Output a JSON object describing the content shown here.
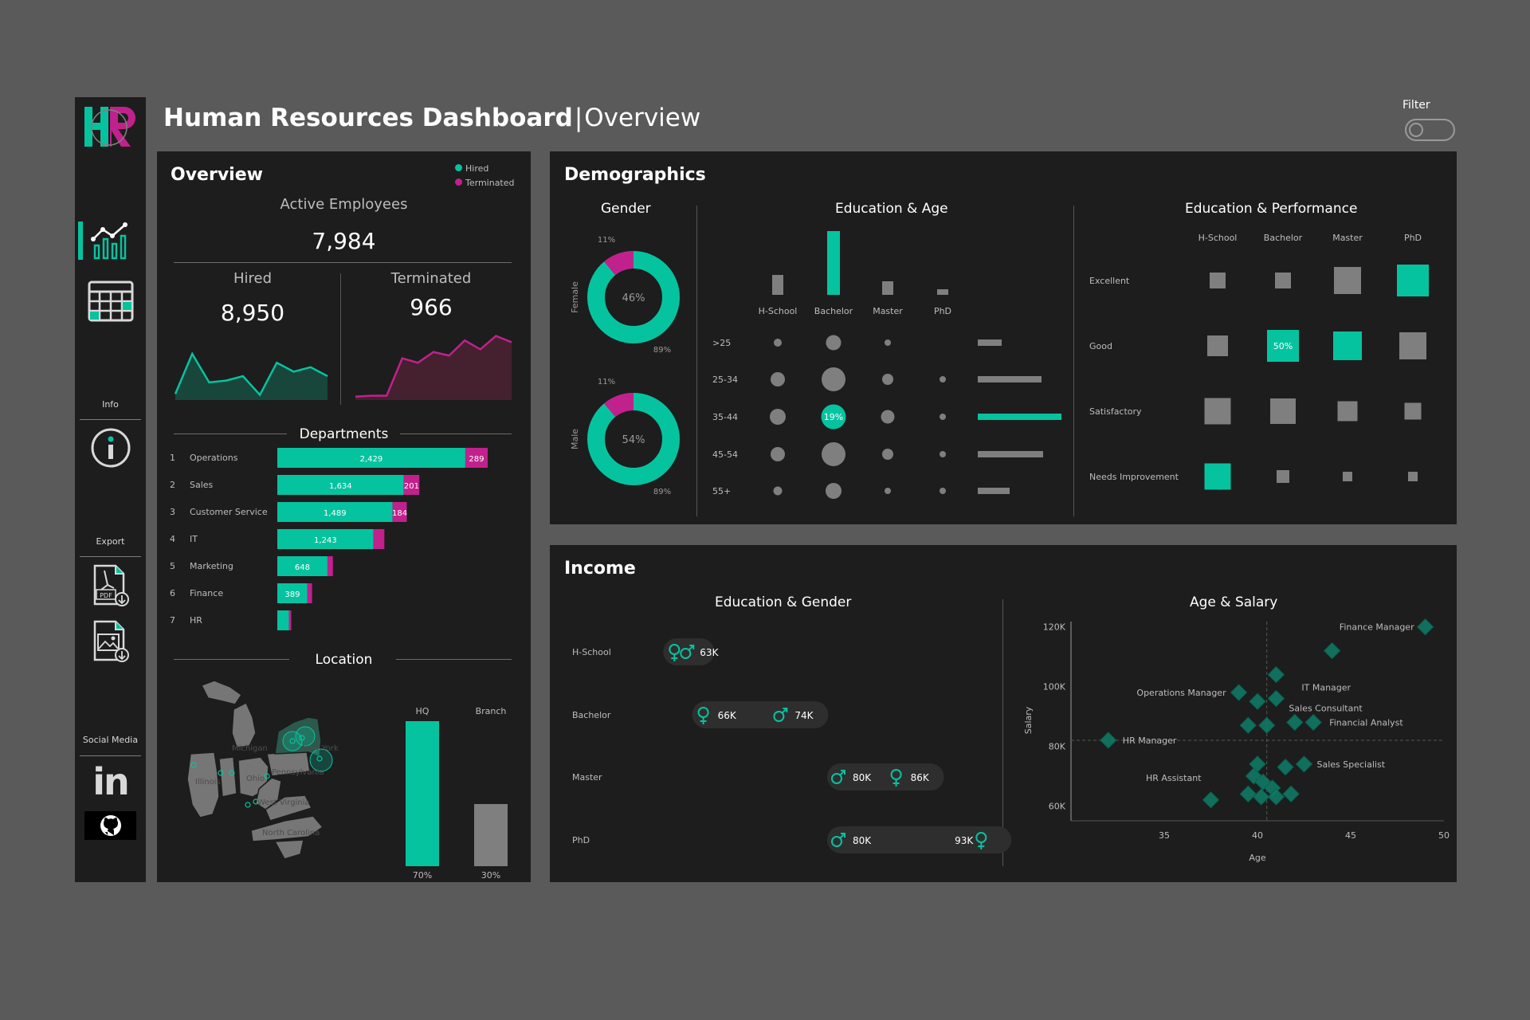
{
  "header": {
    "title": "Human Resources Dashboard",
    "separator": "|",
    "subtitle": "Overview",
    "filter_label": "Filter"
  },
  "sidebar": {
    "logo": "HR",
    "info_label": "Info",
    "export_label": "Export",
    "social_label": "Social Media",
    "linkedin_label": "in",
    "pdf_label": "PDF"
  },
  "overview": {
    "title": "Overview",
    "legend": {
      "hired": "Hired",
      "terminated": "Terminated"
    },
    "active_label": "Active Employees",
    "active_value": "7,984",
    "hired_label": "Hired",
    "hired_value": "8,950",
    "terminated_label": "Terminated",
    "terminated_value": "966",
    "departments_title": "Departments",
    "location_title": "Location"
  },
  "demographics": {
    "title": "Demographics",
    "gender_title": "Gender",
    "edu_age_title": "Education & Age",
    "edu_perf_title": "Education & Performance"
  },
  "income": {
    "title": "Income",
    "edu_gender_title": "Education & Gender",
    "age_salary_title": "Age & Salary"
  },
  "colors": {
    "accent": "#06c3a0",
    "magenta": "#c1218c",
    "gray": "#7f7f7f",
    "panel": "#1d1d1d",
    "page": "#5a5a5a"
  },
  "chart_data": [
    {
      "type": "area",
      "name": "hired-sparkline",
      "series": [
        {
          "name": "Hired",
          "values": [
            5,
            50,
            18,
            20,
            25,
            4,
            40,
            30,
            35,
            25
          ]
        }
      ]
    },
    {
      "type": "area",
      "name": "terminated-sparkline",
      "series": [
        {
          "name": "Terminated",
          "values": [
            2,
            3,
            3,
            45,
            40,
            52,
            48,
            65,
            55,
            70,
            63
          ]
        }
      ]
    },
    {
      "type": "bar",
      "name": "departments",
      "categories": [
        "Operations",
        "Sales",
        "Customer Service",
        "IT",
        "Marketing",
        "Finance",
        "HR"
      ],
      "ranks": [
        "1",
        "2",
        "3",
        "4",
        "5",
        "6",
        "7"
      ],
      "series": [
        {
          "name": "Hired",
          "values": [
            2429,
            1634,
            1489,
            1243,
            648,
            389,
            150
          ],
          "labels": [
            "2,429",
            "1,634",
            "1,489",
            "1,243",
            "648",
            "389",
            ""
          ]
        },
        {
          "name": "Terminated",
          "values": [
            289,
            201,
            184,
            140,
            70,
            60,
            30
          ],
          "labels": [
            "289",
            "201",
            "184",
            "",
            "",
            "",
            ""
          ]
        }
      ]
    },
    {
      "type": "bar",
      "name": "location",
      "categories": [
        "HQ",
        "Branch"
      ],
      "values": [
        70,
        30
      ],
      "value_labels": [
        "70%",
        "30%"
      ],
      "map_labels": [
        "Michigan",
        "New York",
        "Illinois",
        "Ohio",
        "Pennsylvania",
        "West Virginia",
        "North Carolina"
      ]
    },
    {
      "type": "pie",
      "name": "gender",
      "categories": [
        "Female",
        "Male"
      ],
      "values": [
        46,
        54
      ],
      "value_labels": [
        "46%",
        "54%"
      ],
      "terminated_labels": [
        "11%",
        "11%"
      ],
      "hired_labels": [
        "89%",
        "89%"
      ],
      "terminated_fraction": 0.11
    },
    {
      "type": "bar",
      "name": "education-totals",
      "categories": [
        "H-School",
        "Bachelor",
        "Master",
        "PhD"
      ],
      "values": [
        25,
        80,
        17,
        7
      ]
    },
    {
      "type": "scatter",
      "name": "education-age",
      "x_categories": [
        "H-School",
        "Bachelor",
        "Master",
        "PhD"
      ],
      "y_categories": [
        ">25",
        "25-34",
        "35-44",
        "45-54",
        "55+"
      ],
      "sizes": [
        [
          10,
          19,
          8,
          0
        ],
        [
          18,
          30,
          14,
          8
        ],
        [
          20,
          31,
          17,
          8
        ],
        [
          18,
          30,
          14,
          8
        ],
        [
          11,
          20,
          8,
          8
        ]
      ],
      "highlight_label": "19%",
      "row_totals": [
        30,
        80,
        105,
        82,
        40
      ]
    },
    {
      "type": "heatmap",
      "name": "education-performance",
      "x_categories": [
        "H-School",
        "Bachelor",
        "Master",
        "PhD"
      ],
      "y_categories": [
        "Excellent",
        "Good",
        "Satisfactory",
        "Needs Improvement"
      ],
      "sizes": [
        [
          20,
          20,
          34,
          40
        ],
        [
          26,
          40,
          36,
          34
        ],
        [
          33,
          32,
          25,
          21
        ],
        [
          33,
          16,
          12,
          12
        ]
      ],
      "highlight": [
        [
          false,
          false,
          false,
          true
        ],
        [
          false,
          true,
          true,
          false
        ],
        [
          false,
          false,
          false,
          false
        ],
        [
          true,
          false,
          false,
          false
        ]
      ],
      "cell_labels": [
        [
          "",
          "",
          "",
          ""
        ],
        [
          "",
          "50%",
          "",
          ""
        ],
        [
          "",
          "",
          "",
          ""
        ],
        [
          "",
          "",
          "",
          ""
        ]
      ]
    },
    {
      "type": "scatter",
      "name": "education-gender-income",
      "categories": [
        "H-School",
        "Bachelor",
        "Master",
        "PhD"
      ],
      "male": [
        63,
        74,
        80,
        80
      ],
      "female": [
        63,
        66,
        86,
        93
      ],
      "labels": [
        [
          "63K"
        ],
        [
          "66K",
          "74K"
        ],
        [
          "80K",
          "86K"
        ],
        [
          "80K",
          "93K"
        ]
      ]
    },
    {
      "type": "scatter",
      "name": "age-salary",
      "xlabel": "Age",
      "ylabel": "Salary",
      "xlim": [
        30,
        50
      ],
      "ylim": [
        55,
        125
      ],
      "x_ticks": [
        "35",
        "40",
        "45",
        "50"
      ],
      "y_ticks": [
        "60K",
        "80K",
        "100K",
        "120K"
      ],
      "points": [
        {
          "x": 49,
          "y": 120,
          "label": "Finance Manager"
        },
        {
          "x": 44,
          "y": 112,
          "label": ""
        },
        {
          "x": 41,
          "y": 104,
          "label": "IT Manager"
        },
        {
          "x": 39,
          "y": 98,
          "label": "Operations Manager"
        },
        {
          "x": 40,
          "y": 95,
          "label": ""
        },
        {
          "x": 41,
          "y": 96,
          "label": "Sales Consultant"
        },
        {
          "x": 32,
          "y": 82,
          "label": "HR Manager"
        },
        {
          "x": 39.5,
          "y": 87,
          "label": ""
        },
        {
          "x": 40.5,
          "y": 87,
          "label": ""
        },
        {
          "x": 42,
          "y": 88,
          "label": ""
        },
        {
          "x": 43,
          "y": 88,
          "label": "Financial Analyst"
        },
        {
          "x": 42.5,
          "y": 74,
          "label": "Sales Specialist"
        },
        {
          "x": 41.5,
          "y": 73,
          "label": ""
        },
        {
          "x": 40,
          "y": 74,
          "label": ""
        },
        {
          "x": 39.8,
          "y": 70,
          "label": ""
        },
        {
          "x": 40.3,
          "y": 68,
          "label": ""
        },
        {
          "x": 40.8,
          "y": 66,
          "label": ""
        },
        {
          "x": 39.5,
          "y": 64,
          "label": ""
        },
        {
          "x": 40.2,
          "y": 63,
          "label": ""
        },
        {
          "x": 41,
          "y": 63,
          "label": ""
        },
        {
          "x": 41.8,
          "y": 64,
          "label": ""
        },
        {
          "x": 37.5,
          "y": 62,
          "label": "HR Assistant"
        }
      ]
    }
  ]
}
